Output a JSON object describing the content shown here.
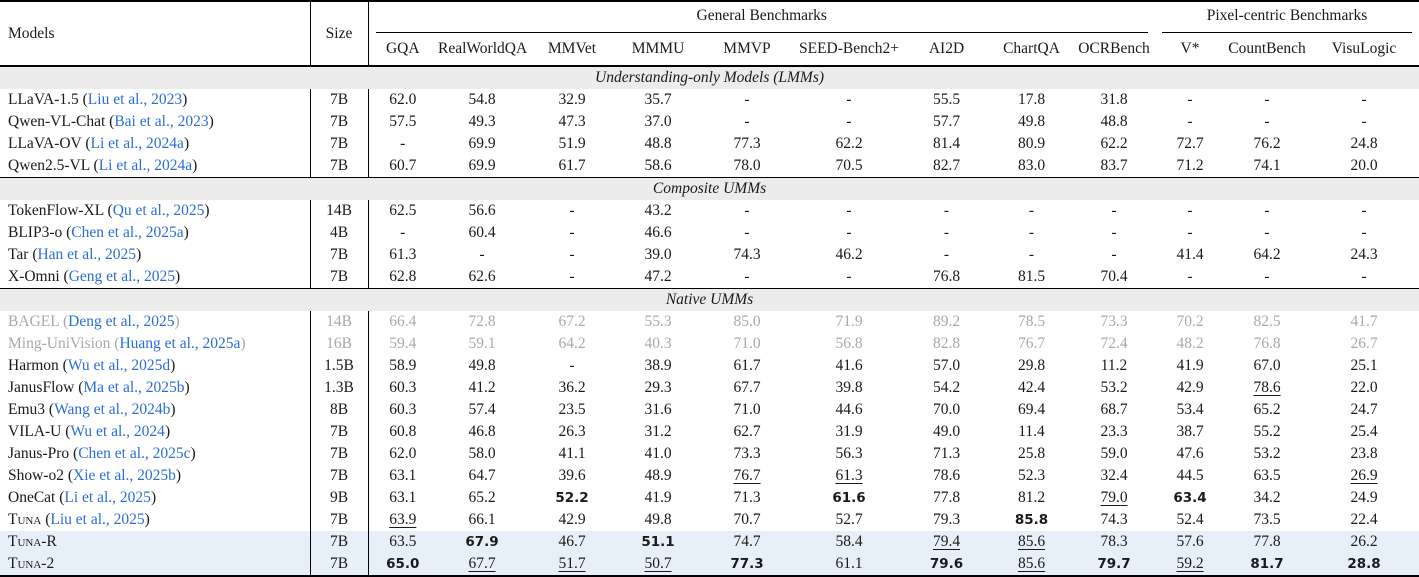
{
  "colors": {
    "citation_blue": "#2b6fd4",
    "muted_gray": "#a9a9a9",
    "band_bg": "#ececec",
    "highlight_bg": "#e7f0f9"
  },
  "table": {
    "col_groups": [
      {
        "label": "General Benchmarks",
        "span": 9
      },
      {
        "label": "Pixel-centric Benchmarks",
        "span": 3
      }
    ],
    "columns": [
      "Models",
      "Size",
      "GQA",
      "RealWorldQA",
      "MMVet",
      "MMMU",
      "MMVP",
      "SEED-Bench2+",
      "AI2D",
      "ChartQA",
      "OCRBench",
      "V*",
      "CountBench",
      "VisuLogic"
    ],
    "sections": [
      {
        "title": "Understanding-only Models (LMMs)",
        "rows": [
          {
            "model": "LLaVA-1.5",
            "cite": "Liu et al., 2023",
            "size": "7B",
            "values": [
              "62.0",
              "54.8",
              "32.9",
              "35.7",
              "-",
              "-",
              "55.5",
              "17.8",
              "31.8",
              "-",
              "-",
              "-"
            ],
            "styles": [
              "",
              "",
              "",
              "",
              "",
              "",
              "",
              "",
              "",
              "",
              "",
              ""
            ]
          },
          {
            "model": "Qwen-VL-Chat",
            "cite": "Bai et al., 2023",
            "size": "7B",
            "values": [
              "57.5",
              "49.3",
              "47.3",
              "37.0",
              "-",
              "-",
              "57.7",
              "49.8",
              "48.8",
              "-",
              "-",
              "-"
            ],
            "styles": [
              "",
              "",
              "",
              "",
              "",
              "",
              "",
              "",
              "",
              "",
              "",
              ""
            ]
          },
          {
            "model": "LLaVA-OV",
            "cite": "Li et al., 2024a",
            "size": "7B",
            "values": [
              "-",
              "69.9",
              "51.9",
              "48.8",
              "77.3",
              "62.2",
              "81.4",
              "80.9",
              "62.2",
              "72.7",
              "76.2",
              "24.8"
            ],
            "styles": [
              "",
              "",
              "",
              "",
              "",
              "",
              "",
              "",
              "",
              "",
              "",
              ""
            ]
          },
          {
            "model": "Qwen2.5-VL",
            "cite": "Li et al., 2024a",
            "size": "7B",
            "values": [
              "60.7",
              "69.9",
              "61.7",
              "58.6",
              "78.0",
              "70.5",
              "82.7",
              "83.0",
              "83.7",
              "71.2",
              "74.1",
              "20.0"
            ],
            "styles": [
              "",
              "",
              "",
              "",
              "",
              "",
              "",
              "",
              "",
              "",
              "",
              ""
            ]
          }
        ]
      },
      {
        "title": "Composite UMMs",
        "rows": [
          {
            "model": "TokenFlow-XL",
            "cite": "Qu et al., 2025",
            "size": "14B",
            "values": [
              "62.5",
              "56.6",
              "-",
              "43.2",
              "-",
              "-",
              "-",
              "-",
              "-",
              "-",
              "-",
              "-"
            ],
            "styles": [
              "",
              "",
              "",
              "",
              "",
              "",
              "",
              "",
              "",
              "",
              "",
              ""
            ]
          },
          {
            "model": "BLIP3-o",
            "cite": "Chen et al., 2025a",
            "size": "4B",
            "values": [
              "-",
              "60.4",
              "-",
              "46.6",
              "-",
              "-",
              "-",
              "-",
              "-",
              "-",
              "-",
              "-"
            ],
            "styles": [
              "",
              "",
              "",
              "",
              "",
              "",
              "",
              "",
              "",
              "",
              "",
              ""
            ]
          },
          {
            "model": "Tar",
            "cite": "Han et al., 2025",
            "size": "7B",
            "values": [
              "61.3",
              "-",
              "-",
              "39.0",
              "74.3",
              "46.2",
              "-",
              "-",
              "-",
              "41.4",
              "64.2",
              "24.3"
            ],
            "styles": [
              "",
              "",
              "",
              "",
              "",
              "",
              "",
              "",
              "",
              "",
              "",
              ""
            ]
          },
          {
            "model": "X-Omni",
            "cite": "Geng et al., 2025",
            "size": "7B",
            "values": [
              "62.8",
              "62.6",
              "-",
              "47.2",
              "-",
              "-",
              "76.8",
              "81.5",
              "70.4",
              "-",
              "-",
              "-"
            ],
            "styles": [
              "",
              "",
              "",
              "",
              "",
              "",
              "",
              "",
              "",
              "",
              "",
              ""
            ]
          }
        ]
      },
      {
        "title": "Native UMMs",
        "rows": [
          {
            "model": "BAGEL",
            "cite": "Deng et al., 2025",
            "size": "14B",
            "gray": true,
            "values": [
              "66.4",
              "72.8",
              "67.2",
              "55.3",
              "85.0",
              "71.9",
              "89.2",
              "78.5",
              "73.3",
              "70.2",
              "82.5",
              "41.7"
            ],
            "styles": [
              "",
              "",
              "",
              "",
              "",
              "",
              "",
              "",
              "",
              "",
              "",
              ""
            ]
          },
          {
            "model": "Ming-UniVision",
            "cite": "Huang et al., 2025a",
            "size": "16B",
            "gray": true,
            "values": [
              "59.4",
              "59.1",
              "64.2",
              "40.3",
              "71.0",
              "56.8",
              "82.8",
              "76.7",
              "72.4",
              "48.2",
              "76.8",
              "26.7"
            ],
            "styles": [
              "",
              "",
              "",
              "",
              "",
              "",
              "",
              "",
              "",
              "",
              "",
              ""
            ]
          },
          {
            "model": "Harmon",
            "cite": "Wu et al., 2025d",
            "size": "1.5B",
            "values": [
              "58.9",
              "49.8",
              "-",
              "38.9",
              "61.7",
              "41.6",
              "57.0",
              "29.8",
              "11.2",
              "41.9",
              "67.0",
              "25.1"
            ],
            "styles": [
              "",
              "",
              "",
              "",
              "",
              "",
              "",
              "",
              "",
              "",
              "",
              ""
            ]
          },
          {
            "model": "JanusFlow",
            "cite": "Ma et al., 2025b",
            "size": "1.3B",
            "values": [
              "60.3",
              "41.2",
              "36.2",
              "29.3",
              "67.7",
              "39.8",
              "54.2",
              "42.4",
              "53.2",
              "42.9",
              "78.6",
              "22.0"
            ],
            "styles": [
              "",
              "",
              "",
              "",
              "",
              "",
              "",
              "",
              "",
              "",
              "u",
              ""
            ]
          },
          {
            "model": "Emu3",
            "cite": "Wang et al., 2024b",
            "size": "8B",
            "values": [
              "60.3",
              "57.4",
              "23.5",
              "31.6",
              "71.0",
              "44.6",
              "70.0",
              "69.4",
              "68.7",
              "53.4",
              "65.2",
              "24.7"
            ],
            "styles": [
              "",
              "",
              "",
              "",
              "",
              "",
              "",
              "",
              "",
              "",
              "",
              ""
            ]
          },
          {
            "model": "VILA-U",
            "cite": "Wu et al., 2024",
            "size": "7B",
            "values": [
              "60.8",
              "46.8",
              "26.3",
              "31.2",
              "62.7",
              "31.9",
              "49.0",
              "11.4",
              "23.3",
              "38.7",
              "55.2",
              "25.4"
            ],
            "styles": [
              "",
              "",
              "",
              "",
              "",
              "",
              "",
              "",
              "",
              "",
              "",
              ""
            ]
          },
          {
            "model": "Janus-Pro",
            "cite": "Chen et al., 2025c",
            "size": "7B",
            "values": [
              "62.0",
              "58.0",
              "41.1",
              "41.0",
              "73.3",
              "56.3",
              "71.3",
              "25.8",
              "59.0",
              "47.6",
              "53.2",
              "23.8"
            ],
            "styles": [
              "",
              "",
              "",
              "",
              "",
              "",
              "",
              "",
              "",
              "",
              "",
              ""
            ]
          },
          {
            "model": "Show-o2",
            "cite": "Xie et al., 2025b",
            "size": "7B",
            "values": [
              "63.1",
              "64.7",
              "39.6",
              "48.9",
              "76.7",
              "61.3",
              "78.6",
              "52.3",
              "32.4",
              "44.5",
              "63.5",
              "26.9"
            ],
            "styles": [
              "",
              "",
              "",
              "",
              "u",
              "u",
              "",
              "",
              "",
              "",
              "",
              "u"
            ]
          },
          {
            "model": "OneCat",
            "cite": "Li et al., 2025",
            "size": "9B",
            "values": [
              "63.1",
              "65.2",
              "52.2",
              "41.9",
              "71.3",
              "61.6",
              "77.8",
              "81.2",
              "79.0",
              "63.4",
              "34.2",
              "24.9"
            ],
            "styles": [
              "",
              "",
              "b",
              "",
              "",
              "b",
              "",
              "",
              "u",
              "b",
              "",
              ""
            ]
          },
          {
            "model": "Tuna",
            "cite": "Liu et al., 2025",
            "size": "7B",
            "sc": true,
            "values": [
              "63.9",
              "66.1",
              "42.9",
              "49.8",
              "70.7",
              "52.7",
              "79.3",
              "85.8",
              "74.3",
              "52.4",
              "73.5",
              "22.4"
            ],
            "styles": [
              "u",
              "",
              "",
              "",
              "",
              "",
              "",
              "b",
              "",
              "",
              "",
              ""
            ]
          },
          {
            "model": "Tuna-R",
            "cite": "",
            "size": "7B",
            "sc": true,
            "highlight": true,
            "values": [
              "63.5",
              "67.9",
              "46.7",
              "51.1",
              "74.7",
              "58.4",
              "79.4",
              "85.6",
              "78.3",
              "57.6",
              "77.8",
              "26.2"
            ],
            "styles": [
              "",
              "b",
              "",
              "b",
              "",
              "",
              "u",
              "u",
              "",
              "",
              "",
              ""
            ]
          },
          {
            "model": "Tuna-2",
            "cite": "",
            "size": "7B",
            "sc": true,
            "highlight": true,
            "values": [
              "65.0",
              "67.7",
              "51.7",
              "50.7",
              "77.3",
              "61.1",
              "79.6",
              "85.6",
              "79.7",
              "59.2",
              "81.7",
              "28.8"
            ],
            "styles": [
              "b",
              "u",
              "u",
              "u",
              "b",
              "",
              "b",
              "u",
              "b",
              "u",
              "b",
              "b"
            ]
          }
        ]
      }
    ]
  }
}
